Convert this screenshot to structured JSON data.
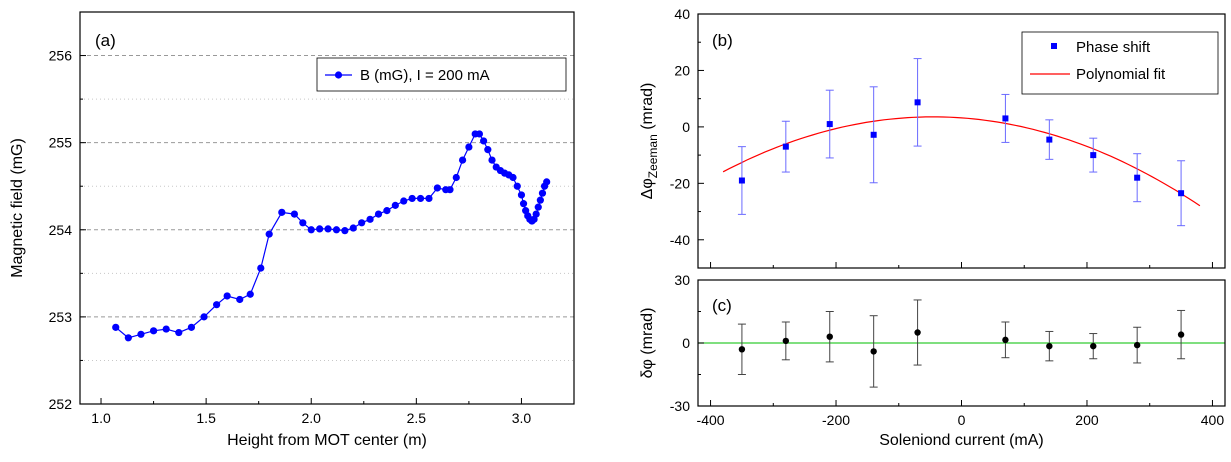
{
  "chart_data": [
    {
      "panel": "(a)",
      "type": "line",
      "xlabel": "Height from MOT center (m)",
      "ylabel": "Magnetic field (mG)",
      "xlim": [
        0.9,
        3.25
      ],
      "ylim": [
        252,
        256.5
      ],
      "xticks": [
        "1.0",
        "1.5",
        "2.0",
        "2.5",
        "3.0"
      ],
      "yticks": [
        "252",
        "253",
        "254",
        "255",
        "256"
      ],
      "grid": "horizontal dashed major and dotted minor",
      "legend_position": "top-right",
      "series": [
        {
          "name": "B (mG), I = 200 mA",
          "color": "#0000ff",
          "marker": "circle",
          "x": [
            1.07,
            1.13,
            1.19,
            1.25,
            1.31,
            1.37,
            1.43,
            1.49,
            1.55,
            1.6,
            1.66,
            1.71,
            1.76,
            1.8,
            1.86,
            1.92,
            1.96,
            2.0,
            2.04,
            2.08,
            2.12,
            2.16,
            2.2,
            2.24,
            2.28,
            2.32,
            2.36,
            2.4,
            2.44,
            2.48,
            2.52,
            2.56,
            2.6,
            2.64,
            2.66,
            2.69,
            2.72,
            2.75,
            2.78,
            2.8,
            2.82,
            2.84,
            2.86,
            2.88,
            2.9,
            2.92,
            2.94,
            2.96,
            2.98,
            3.0,
            3.01,
            3.02,
            3.03,
            3.04,
            3.05,
            3.06,
            3.07,
            3.08,
            3.09,
            3.1,
            3.11,
            3.12
          ],
          "y": [
            252.88,
            252.76,
            252.8,
            252.84,
            252.86,
            252.82,
            252.88,
            253.0,
            253.14,
            253.24,
            253.2,
            253.26,
            253.56,
            253.95,
            254.2,
            254.18,
            254.08,
            254.0,
            254.01,
            254.01,
            254.0,
            253.99,
            254.02,
            254.08,
            254.12,
            254.18,
            254.22,
            254.28,
            254.33,
            254.36,
            254.36,
            254.36,
            254.48,
            254.46,
            254.46,
            254.6,
            254.8,
            254.95,
            255.1,
            255.1,
            255.02,
            254.92,
            254.8,
            254.72,
            254.68,
            254.65,
            254.63,
            254.6,
            254.5,
            254.4,
            254.3,
            254.22,
            254.16,
            254.12,
            254.1,
            254.12,
            254.18,
            254.26,
            254.34,
            254.42,
            254.5,
            254.55
          ]
        }
      ]
    },
    {
      "panel": "(b)",
      "type": "scatter",
      "ylabel_main": "Δφ",
      "ylabel_sub": "Zeeman",
      "ylabel_unit": " (mrad)",
      "xlim": [
        -420,
        420
      ],
      "ylim": [
        -50,
        40
      ],
      "yticks": [
        "-40",
        "-20",
        "0",
        "20",
        "40"
      ],
      "legend_position": "top-right",
      "series": [
        {
          "name": "Phase shift",
          "color": "#0000ff",
          "marker": "square",
          "x": [
            -350,
            -280,
            -210,
            -140,
            -70,
            70,
            140,
            210,
            280,
            350
          ],
          "y": [
            -19,
            -7,
            1,
            -2.8,
            8.7,
            3,
            -4.5,
            -10,
            -18,
            -23.5
          ],
          "yerr": [
            12,
            9,
            12,
            17,
            15.5,
            8.5,
            7,
            6,
            8.5,
            11.5
          ]
        },
        {
          "name": "Polynomial fit",
          "color": "#ff0000",
          "type": "line",
          "model": "quadratic",
          "x_range": [
            -380,
            380
          ],
          "a": -0.000174,
          "b": -0.0158,
          "c": 3.2
        }
      ]
    },
    {
      "panel": "(c)",
      "type": "scatter",
      "xlabel": "Soleniond current (mA)",
      "ylabel": "δφ (mrad)",
      "xlim": [
        -420,
        420
      ],
      "ylim": [
        -30,
        30
      ],
      "xticks": [
        "-400",
        "-200",
        "0",
        "200",
        "400"
      ],
      "yticks": [
        "-30",
        "0",
        "30"
      ],
      "reference_line": {
        "y": 0,
        "color": "#33cc33"
      },
      "series": [
        {
          "color": "#000000",
          "marker": "circle",
          "x": [
            -350,
            -280,
            -210,
            -140,
            -70,
            70,
            140,
            210,
            280,
            350
          ],
          "y": [
            -3,
            1,
            3,
            -4,
            5,
            1.5,
            -1.5,
            -1.5,
            -1,
            4
          ],
          "yerr": [
            12,
            9,
            12,
            17,
            15.5,
            8.5,
            7,
            6,
            8.5,
            11.5
          ]
        }
      ]
    }
  ]
}
